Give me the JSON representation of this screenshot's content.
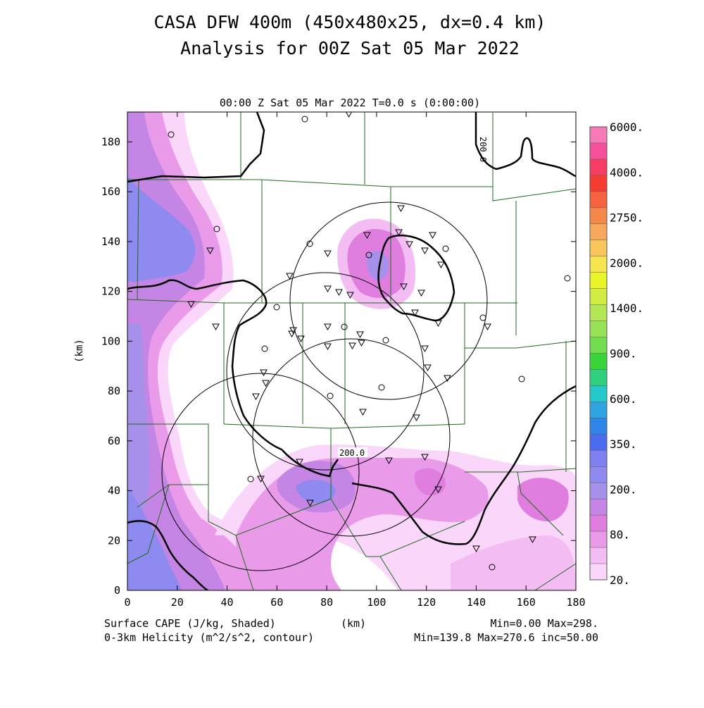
{
  "titles": {
    "line1": "CASA DFW 400m (450x480x25, dx=0.4 km)",
    "line2": "Analysis for 00Z Sat 05 Mar 2022",
    "time_line": "00:00 Z Sat 05 Mar 2022   T=0.0 s (0:00:00)"
  },
  "axes": {
    "xlabel": "(km)",
    "ylabel": "(km)",
    "xlim": [
      0,
      180
    ],
    "ylim": [
      0,
      192
    ],
    "xticks": [
      "0",
      "20",
      "40",
      "60",
      "80",
      "100",
      "120",
      "140",
      "160",
      "180"
    ],
    "yticks": [
      "0",
      "20",
      "40",
      "60",
      "80",
      "100",
      "120",
      "140",
      "160",
      "180"
    ]
  },
  "contours": {
    "label_top": "200.0",
    "label_bottom": "200.0"
  },
  "footer": {
    "left1": "Surface CAPE (J/kg, Shaded)",
    "left2": "0-3km Helicity (m^2/s^2, contour)",
    "center": "(km)",
    "right1": "Min=0.00 Max=298.",
    "right2": "Min=139.8 Max=270.6 inc=50.00"
  },
  "colorbar": {
    "colors": [
      "#fbd6fb",
      "#f3bdf3",
      "#e99ae9",
      "#e07ee0",
      "#c585e5",
      "#a690ea",
      "#8f8af0",
      "#7f7fee",
      "#4c6cf0",
      "#2f86e8",
      "#2fa2e0",
      "#26c9c9",
      "#2fcf7f",
      "#39d43a",
      "#70de4f",
      "#98e257",
      "#b5e654",
      "#d3ec40",
      "#e9f524",
      "#f6e54e",
      "#f7c75b",
      "#f6a95d",
      "#f6874b",
      "#f6643f",
      "#f63c30",
      "#f63c62",
      "#f6509a",
      "#f77ab8"
    ],
    "labels": [
      "20.",
      "80.",
      "200.",
      "350.",
      "600.",
      "900.",
      "1400.",
      "2000.",
      "2750.",
      "4000.",
      "6000."
    ]
  },
  "chart_data": {
    "type": "heatmap",
    "variable_shaded": "Surface CAPE (J/kg)",
    "variable_contour": "0-3km Helicity (m^2/s^2)",
    "cape_min": 0.0,
    "cape_max": 298.0,
    "helicity_min": 139.8,
    "helicity_max": 270.6,
    "helicity_inc": 50.0,
    "contour_level": 200.0,
    "radar_rings": [
      {
        "center": [
          79,
          88
        ],
        "radius": 40
      },
      {
        "center": [
          105,
          116
        ],
        "radius": 40
      },
      {
        "center": [
          93,
          63
        ],
        "radius": 40
      },
      {
        "center": [
          37,
          49
        ],
        "radius": 40
      }
    ]
  }
}
